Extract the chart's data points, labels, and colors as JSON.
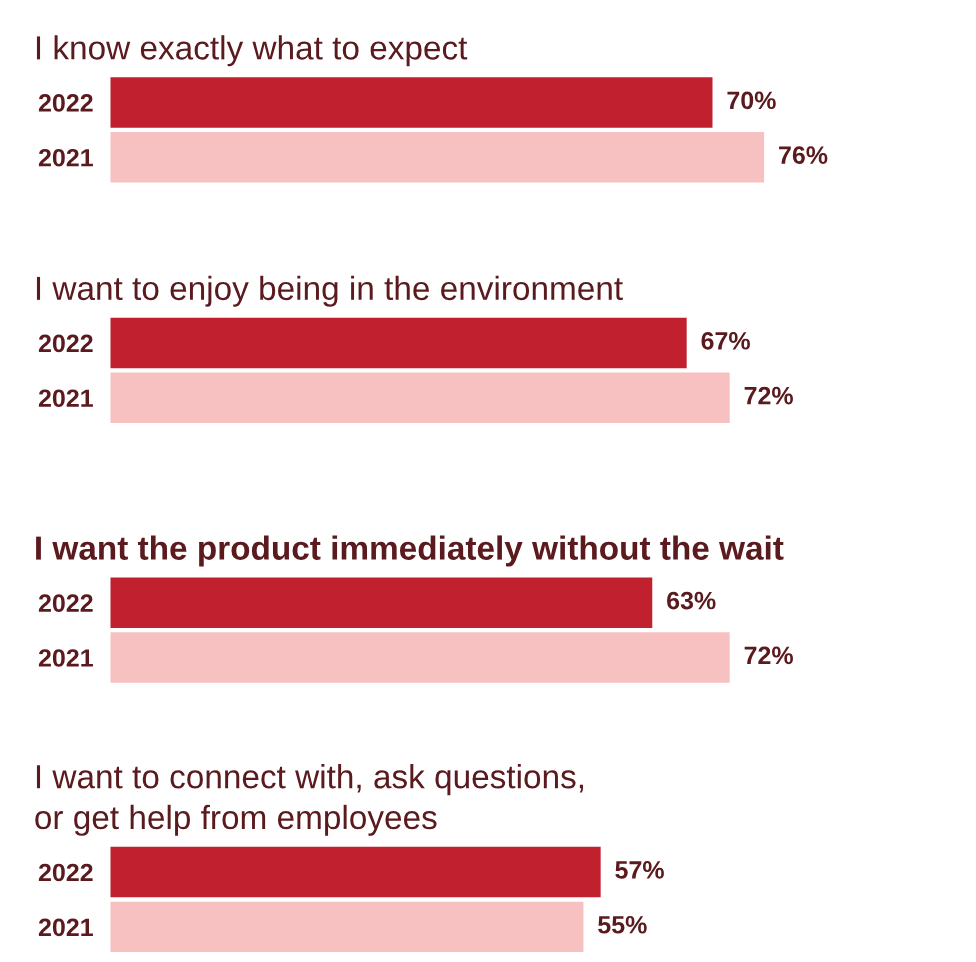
{
  "chart_data": [
    {
      "type": "bar",
      "orientation": "horizontal",
      "title": "I know exactly what to expect",
      "categories": [
        "2022",
        "2021"
      ],
      "values": [
        70,
        76
      ],
      "value_labels": [
        "70%",
        "76%"
      ],
      "colors": [
        "#c1202f",
        "#f7c1c1"
      ],
      "tick_labels": "y",
      "grid": false,
      "legend": false
    },
    {
      "type": "bar",
      "orientation": "horizontal",
      "title": "I want to enjoy being in the environment",
      "categories": [
        "2022",
        "2021"
      ],
      "values": [
        67,
        72
      ],
      "value_labels": [
        "67%",
        "72%"
      ],
      "colors": [
        "#c1202f",
        "#f7c1c1"
      ],
      "tick_labels": "y",
      "grid": false,
      "legend": false
    },
    {
      "type": "bar",
      "orientation": "horizontal",
      "title": "I want the product immediately without the wait",
      "categories": [
        "2022",
        "2021"
      ],
      "values": [
        63,
        72
      ],
      "value_labels": [
        "63%",
        "72%"
      ],
      "colors": [
        "#c1202f",
        "#f7c1c1"
      ],
      "tick_labels": "y",
      "grid": false,
      "legend": false
    },
    {
      "type": "bar",
      "orientation": "horizontal",
      "title": "I want to connect with, ask questions,\nor get help from employees",
      "categories": [
        "2022",
        "2021"
      ],
      "values": [
        57,
        55
      ],
      "value_labels": [
        "57%",
        "55%"
      ],
      "colors": [
        "#c1202f",
        "#f7c1c1"
      ],
      "tick_labels": "y",
      "grid": false,
      "legend": false
    }
  ]
}
